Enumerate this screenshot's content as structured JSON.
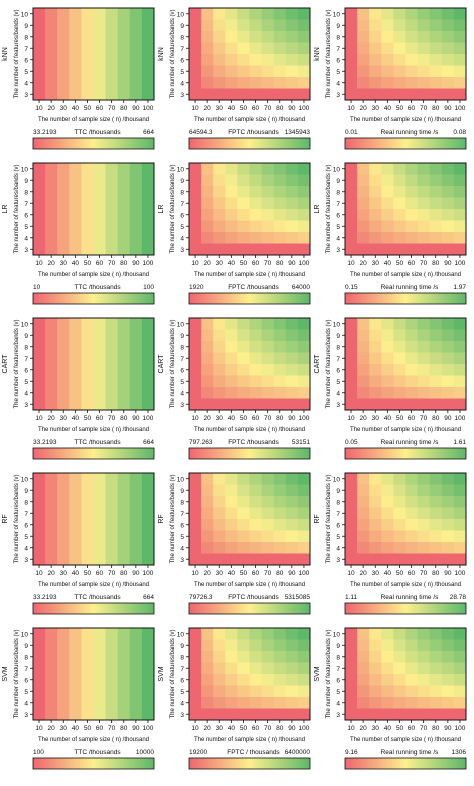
{
  "x_axis_label": "The number of sample size ( n) /thousand",
  "y_axis_label": "The number of features/bands (v)",
  "x_ticks": [
    "10",
    "20",
    "30",
    "40",
    "50",
    "60",
    "70",
    "80",
    "90",
    "100"
  ],
  "y_ticks": [
    "10",
    "9",
    "8",
    "7",
    "6",
    "5",
    "4",
    "3"
  ],
  "colors": {
    "low": "#ee6670",
    "mid": "#fdf08e",
    "high": "#5db86a",
    "frame": "#111111"
  },
  "chart_data": [
    {
      "type": "heatmap",
      "model": "kNN",
      "metric": "TTC /thousands",
      "min_label": "33.2193",
      "max_label": "664",
      "pattern": "col"
    },
    {
      "type": "heatmap",
      "model": "kNN",
      "metric": "FPTC /thousands",
      "min_label": "64594.3",
      "max_label": "1345943",
      "pattern": "prod"
    },
    {
      "type": "heatmap",
      "model": "kNN",
      "metric": "Real running time /s",
      "min_label": "0.01",
      "max_label": "0.08",
      "pattern": "prod"
    },
    {
      "type": "heatmap",
      "model": "LR",
      "metric": "TTC /thousands",
      "min_label": "10",
      "max_label": "100",
      "pattern": "col"
    },
    {
      "type": "heatmap",
      "model": "LR",
      "metric": "FPTC /thousands",
      "min_label": "1920",
      "max_label": "64000",
      "pattern": "prod"
    },
    {
      "type": "heatmap",
      "model": "LR",
      "metric": "Real running time /s",
      "min_label": "0.15",
      "max_label": "1.97",
      "pattern": "prod"
    },
    {
      "type": "heatmap",
      "model": "CART",
      "metric": "TTC /thousands",
      "min_label": "33.2193",
      "max_label": "664",
      "pattern": "col"
    },
    {
      "type": "heatmap",
      "model": "CART",
      "metric": "FPTC /thousands",
      "min_label": "797.263",
      "max_label": "53151",
      "pattern": "prod"
    },
    {
      "type": "heatmap",
      "model": "CART",
      "metric": "Real running time /s",
      "min_label": "0.05",
      "max_label": "1.61",
      "pattern": "prod"
    },
    {
      "type": "heatmap",
      "model": "RF",
      "metric": "TTC /thousands",
      "min_label": "33.2193",
      "max_label": "664",
      "pattern": "col"
    },
    {
      "type": "heatmap",
      "model": "RF",
      "metric": "FPTC /thousands",
      "min_label": "79726.3",
      "max_label": "5315085",
      "pattern": "prod"
    },
    {
      "type": "heatmap",
      "model": "RF",
      "metric": "Real running time /s",
      "min_label": "1.11",
      "max_label": "28.78",
      "pattern": "prod"
    },
    {
      "type": "heatmap",
      "model": "SVM",
      "metric": "TTC /thousands",
      "min_label": "100",
      "max_label": "10000",
      "pattern": "col"
    },
    {
      "type": "heatmap",
      "model": "SVM",
      "metric": "FPTC / thousands",
      "min_label": "19200",
      "max_label": "6400000",
      "pattern": "prod"
    },
    {
      "type": "heatmap",
      "model": "SVM",
      "metric": "Real running time /s",
      "min_label": "9.16",
      "max_label": "1306",
      "pattern": "prod"
    }
  ]
}
